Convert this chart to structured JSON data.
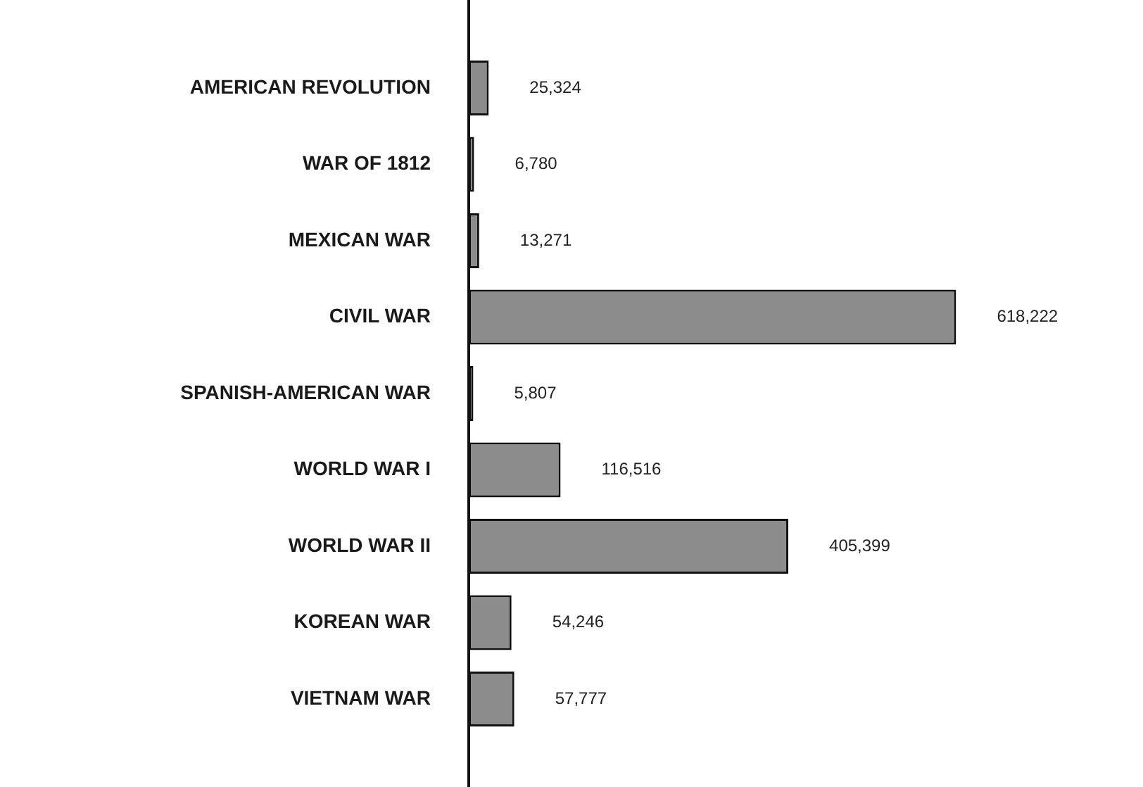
{
  "chart_data": {
    "type": "bar",
    "orientation": "horizontal",
    "categories": [
      "AMERICAN REVOLUTION",
      "WAR OF 1812",
      "MEXICAN WAR",
      "CIVIL WAR",
      "SPANISH-AMERICAN WAR",
      "WORLD WAR I",
      "WORLD WAR II",
      "KOREAN WAR",
      "VIETNAM WAR"
    ],
    "values": [
      25324,
      6780,
      13271,
      618222,
      5807,
      116516,
      405399,
      54246,
      57777
    ],
    "value_labels": [
      "25,324",
      "6,780",
      "13,271",
      "618,222",
      "5,807",
      "116,516",
      "405,399",
      "54,246",
      "57,777"
    ],
    "color": "#8c8c8c",
    "xlim": [
      0,
      850000
    ],
    "tick_labels": "y"
  }
}
